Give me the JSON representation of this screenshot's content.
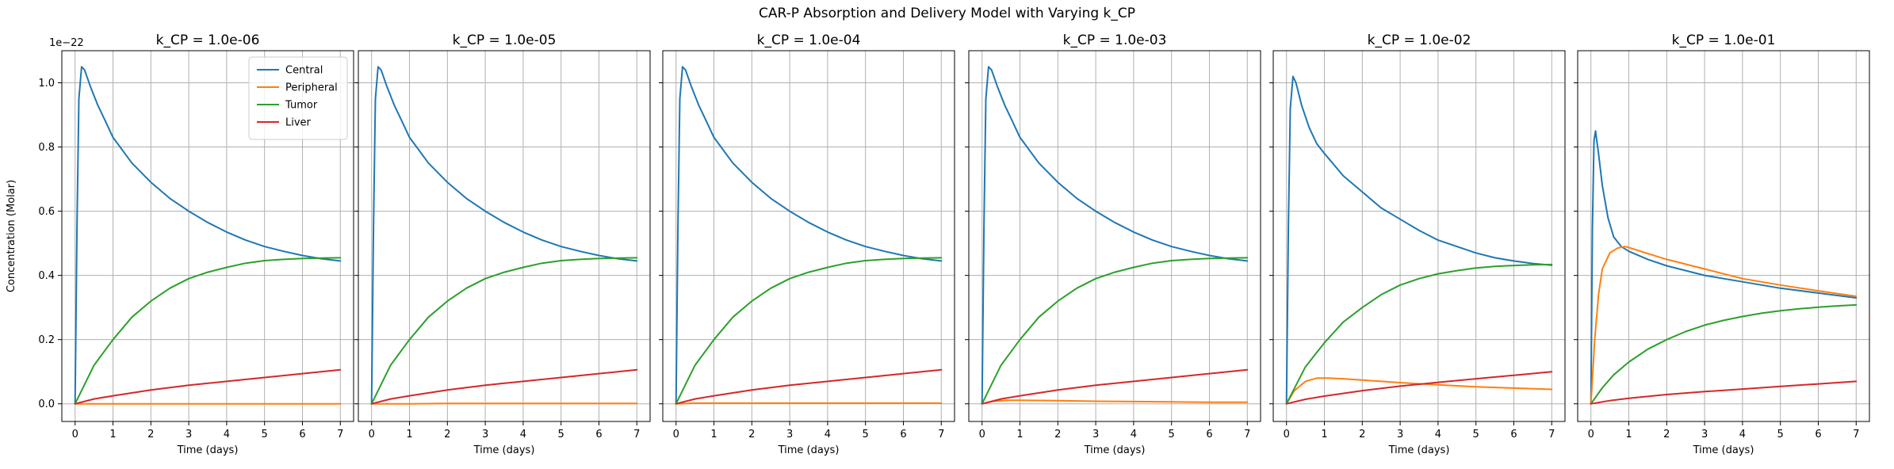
{
  "figure_title": "CAR-P Absorption and Delivery Model with Varying k_CP",
  "colors": {
    "Central": "#1f77b4",
    "Peripheral": "#ff7f0e",
    "Tumor": "#2ca02c",
    "Liver": "#d62728",
    "grid": "#b0b0b0"
  },
  "chart_data": [
    {
      "type": "line",
      "title": "k_CP = 1.0e-06",
      "xlabel": "Time (days)",
      "ylabel": "Concentration (Molar)",
      "xlim": [
        -0.35,
        7.35
      ],
      "ylim": [
        -0.055,
        1.1
      ],
      "y_scale_label": "1e−22",
      "xticks": [
        0,
        1,
        2,
        3,
        4,
        5,
        6,
        7
      ],
      "yticks": [
        0.0,
        0.2,
        0.4,
        0.6,
        0.8,
        1.0
      ],
      "grid": true,
      "legend": "top-right",
      "series": [
        {
          "name": "Central",
          "x": [
            0,
            0.05,
            0.1,
            0.17,
            0.25,
            0.4,
            0.6,
            0.8,
            1,
            1.5,
            2,
            2.5,
            3,
            3.5,
            4,
            4.5,
            5,
            5.5,
            6,
            6.5,
            7
          ],
          "y": [
            0,
            0.55,
            0.95,
            1.05,
            1.04,
            0.99,
            0.93,
            0.88,
            0.83,
            0.75,
            0.69,
            0.64,
            0.6,
            0.565,
            0.535,
            0.51,
            0.49,
            0.475,
            0.462,
            0.452,
            0.445
          ]
        },
        {
          "name": "Peripheral",
          "x": [
            0,
            1,
            2,
            3,
            4,
            5,
            6,
            7
          ],
          "y": [
            0,
            0,
            0,
            0,
            0,
            0,
            0,
            0
          ]
        },
        {
          "name": "Tumor",
          "x": [
            0,
            0.5,
            1,
            1.5,
            2,
            2.5,
            3,
            3.5,
            4,
            4.5,
            5,
            5.5,
            6,
            6.5,
            7
          ],
          "y": [
            0,
            0.12,
            0.2,
            0.27,
            0.32,
            0.36,
            0.39,
            0.41,
            0.425,
            0.438,
            0.446,
            0.45,
            0.453,
            0.454,
            0.455
          ]
        },
        {
          "name": "Liver",
          "x": [
            0,
            0.5,
            1,
            2,
            3,
            4,
            5,
            6,
            7
          ],
          "y": [
            0,
            0.015,
            0.025,
            0.043,
            0.058,
            0.07,
            0.082,
            0.094,
            0.106
          ]
        }
      ]
    },
    {
      "type": "line",
      "title": "k_CP = 1.0e-05",
      "xlabel": "Time (days)",
      "xlim": [
        -0.35,
        7.35
      ],
      "ylim": [
        -0.055,
        1.1
      ],
      "xticks": [
        0,
        1,
        2,
        3,
        4,
        5,
        6,
        7
      ],
      "yticks": [
        0.0,
        0.2,
        0.4,
        0.6,
        0.8,
        1.0
      ],
      "grid": true,
      "series": [
        {
          "name": "Central",
          "x": [
            0,
            0.05,
            0.1,
            0.17,
            0.25,
            0.4,
            0.6,
            0.8,
            1,
            1.5,
            2,
            2.5,
            3,
            3.5,
            4,
            4.5,
            5,
            5.5,
            6,
            6.5,
            7
          ],
          "y": [
            0,
            0.55,
            0.95,
            1.05,
            1.04,
            0.99,
            0.93,
            0.88,
            0.83,
            0.75,
            0.69,
            0.64,
            0.6,
            0.565,
            0.535,
            0.51,
            0.49,
            0.475,
            0.462,
            0.452,
            0.445
          ]
        },
        {
          "name": "Peripheral",
          "x": [
            0,
            1,
            2,
            3,
            4,
            5,
            6,
            7
          ],
          "y": [
            0,
            0,
            0.001,
            0.001,
            0.001,
            0.001,
            0.001,
            0.001
          ]
        },
        {
          "name": "Tumor",
          "x": [
            0,
            0.5,
            1,
            1.5,
            2,
            2.5,
            3,
            3.5,
            4,
            4.5,
            5,
            5.5,
            6,
            6.5,
            7
          ],
          "y": [
            0,
            0.12,
            0.2,
            0.27,
            0.32,
            0.36,
            0.39,
            0.41,
            0.425,
            0.438,
            0.446,
            0.45,
            0.453,
            0.454,
            0.455
          ]
        },
        {
          "name": "Liver",
          "x": [
            0,
            0.5,
            1,
            2,
            3,
            4,
            5,
            6,
            7
          ],
          "y": [
            0,
            0.015,
            0.025,
            0.043,
            0.058,
            0.07,
            0.082,
            0.094,
            0.106
          ]
        }
      ]
    },
    {
      "type": "line",
      "title": "k_CP = 1.0e-04",
      "xlabel": "Time (days)",
      "xlim": [
        -0.35,
        7.35
      ],
      "ylim": [
        -0.055,
        1.1
      ],
      "xticks": [
        0,
        1,
        2,
        3,
        4,
        5,
        6,
        7
      ],
      "yticks": [
        0.0,
        0.2,
        0.4,
        0.6,
        0.8,
        1.0
      ],
      "grid": true,
      "series": [
        {
          "name": "Central",
          "x": [
            0,
            0.05,
            0.1,
            0.17,
            0.25,
            0.4,
            0.6,
            0.8,
            1,
            1.5,
            2,
            2.5,
            3,
            3.5,
            4,
            4.5,
            5,
            5.5,
            6,
            6.5,
            7
          ],
          "y": [
            0,
            0.55,
            0.95,
            1.05,
            1.04,
            0.99,
            0.93,
            0.88,
            0.83,
            0.75,
            0.69,
            0.64,
            0.6,
            0.565,
            0.535,
            0.51,
            0.49,
            0.475,
            0.462,
            0.452,
            0.445
          ]
        },
        {
          "name": "Peripheral",
          "x": [
            0,
            0.5,
            1,
            2,
            3,
            4,
            5,
            6,
            7
          ],
          "y": [
            0,
            0.002,
            0.002,
            0.002,
            0.002,
            0.002,
            0.002,
            0.002,
            0.002
          ]
        },
        {
          "name": "Tumor",
          "x": [
            0,
            0.5,
            1,
            1.5,
            2,
            2.5,
            3,
            3.5,
            4,
            4.5,
            5,
            5.5,
            6,
            6.5,
            7
          ],
          "y": [
            0,
            0.12,
            0.2,
            0.27,
            0.32,
            0.36,
            0.39,
            0.41,
            0.425,
            0.438,
            0.446,
            0.45,
            0.453,
            0.454,
            0.455
          ]
        },
        {
          "name": "Liver",
          "x": [
            0,
            0.5,
            1,
            2,
            3,
            4,
            5,
            6,
            7
          ],
          "y": [
            0,
            0.015,
            0.025,
            0.043,
            0.058,
            0.07,
            0.082,
            0.094,
            0.106
          ]
        }
      ]
    },
    {
      "type": "line",
      "title": "k_CP = 1.0e-03",
      "xlabel": "Time (days)",
      "xlim": [
        -0.35,
        7.35
      ],
      "ylim": [
        -0.055,
        1.1
      ],
      "xticks": [
        0,
        1,
        2,
        3,
        4,
        5,
        6,
        7
      ],
      "yticks": [
        0.0,
        0.2,
        0.4,
        0.6,
        0.8,
        1.0
      ],
      "grid": true,
      "series": [
        {
          "name": "Central",
          "x": [
            0,
            0.05,
            0.1,
            0.17,
            0.25,
            0.4,
            0.6,
            0.8,
            1,
            1.5,
            2,
            2.5,
            3,
            3.5,
            4,
            4.5,
            5,
            5.5,
            6,
            6.5,
            7
          ],
          "y": [
            0,
            0.55,
            0.95,
            1.05,
            1.04,
            0.99,
            0.93,
            0.88,
            0.83,
            0.75,
            0.69,
            0.64,
            0.6,
            0.565,
            0.535,
            0.51,
            0.49,
            0.475,
            0.462,
            0.452,
            0.445
          ]
        },
        {
          "name": "Peripheral",
          "x": [
            0,
            0.3,
            0.7,
            1,
            2,
            3,
            4,
            5,
            6,
            7
          ],
          "y": [
            0,
            0.008,
            0.011,
            0.011,
            0.01,
            0.008,
            0.007,
            0.006,
            0.005,
            0.005
          ]
        },
        {
          "name": "Tumor",
          "x": [
            0,
            0.5,
            1,
            1.5,
            2,
            2.5,
            3,
            3.5,
            4,
            4.5,
            5,
            5.5,
            6,
            6.5,
            7
          ],
          "y": [
            0,
            0.12,
            0.2,
            0.27,
            0.32,
            0.36,
            0.39,
            0.41,
            0.425,
            0.438,
            0.446,
            0.45,
            0.453,
            0.454,
            0.455
          ]
        },
        {
          "name": "Liver",
          "x": [
            0,
            0.5,
            1,
            2,
            3,
            4,
            5,
            6,
            7
          ],
          "y": [
            0,
            0.015,
            0.025,
            0.043,
            0.058,
            0.07,
            0.082,
            0.094,
            0.106
          ]
        }
      ]
    },
    {
      "type": "line",
      "title": "k_CP = 1.0e-02",
      "xlabel": "Time (days)",
      "xlim": [
        -0.35,
        7.35
      ],
      "ylim": [
        -0.055,
        1.1
      ],
      "xticks": [
        0,
        1,
        2,
        3,
        4,
        5,
        6,
        7
      ],
      "yticks": [
        0.0,
        0.2,
        0.4,
        0.6,
        0.8,
        1.0
      ],
      "grid": true,
      "series": [
        {
          "name": "Central",
          "x": [
            0,
            0.05,
            0.1,
            0.17,
            0.25,
            0.4,
            0.6,
            0.8,
            1,
            1.5,
            2,
            2.5,
            3,
            3.5,
            4,
            4.5,
            5,
            5.5,
            6,
            6.5,
            7
          ],
          "y": [
            0,
            0.55,
            0.92,
            1.02,
            1.0,
            0.93,
            0.86,
            0.81,
            0.78,
            0.71,
            0.66,
            0.61,
            0.575,
            0.54,
            0.51,
            0.49,
            0.47,
            0.455,
            0.445,
            0.437,
            0.432
          ]
        },
        {
          "name": "Peripheral",
          "x": [
            0,
            0.2,
            0.5,
            0.8,
            1.1,
            1.5,
            2,
            3,
            4,
            5,
            6,
            7
          ],
          "y": [
            0,
            0.04,
            0.07,
            0.08,
            0.08,
            0.078,
            0.074,
            0.066,
            0.059,
            0.053,
            0.049,
            0.045
          ]
        },
        {
          "name": "Tumor",
          "x": [
            0,
            0.5,
            1,
            1.5,
            2,
            2.5,
            3,
            3.5,
            4,
            4.5,
            5,
            5.5,
            6,
            6.5,
            7
          ],
          "y": [
            0,
            0.115,
            0.19,
            0.255,
            0.3,
            0.34,
            0.37,
            0.39,
            0.405,
            0.415,
            0.423,
            0.428,
            0.431,
            0.433,
            0.434
          ]
        },
        {
          "name": "Liver",
          "x": [
            0,
            0.5,
            1,
            2,
            3,
            4,
            5,
            6,
            7
          ],
          "y": [
            0,
            0.014,
            0.024,
            0.041,
            0.055,
            0.067,
            0.078,
            0.089,
            0.1
          ]
        }
      ]
    },
    {
      "type": "line",
      "title": "k_CP = 1.0e-01",
      "xlabel": "Time (days)",
      "xlim": [
        -0.35,
        7.35
      ],
      "ylim": [
        -0.055,
        1.1
      ],
      "xticks": [
        0,
        1,
        2,
        3,
        4,
        5,
        6,
        7
      ],
      "yticks": [
        0.0,
        0.2,
        0.4,
        0.6,
        0.8,
        1.0
      ],
      "grid": true,
      "series": [
        {
          "name": "Central",
          "x": [
            0,
            0.04,
            0.08,
            0.12,
            0.2,
            0.3,
            0.45,
            0.6,
            0.8,
            1,
            1.5,
            2,
            3,
            4,
            5,
            6,
            7
          ],
          "y": [
            0,
            0.55,
            0.82,
            0.85,
            0.78,
            0.68,
            0.58,
            0.52,
            0.49,
            0.475,
            0.45,
            0.43,
            0.4,
            0.38,
            0.36,
            0.345,
            0.33
          ]
        },
        {
          "name": "Peripheral",
          "x": [
            0,
            0.1,
            0.2,
            0.3,
            0.5,
            0.7,
            0.9,
            1,
            1.5,
            2,
            3,
            4,
            5,
            6,
            7
          ],
          "y": [
            0,
            0.2,
            0.34,
            0.42,
            0.47,
            0.485,
            0.49,
            0.487,
            0.468,
            0.45,
            0.42,
            0.39,
            0.37,
            0.352,
            0.335
          ]
        },
        {
          "name": "Tumor",
          "x": [
            0,
            0.3,
            0.6,
            1,
            1.5,
            2,
            2.5,
            3,
            3.5,
            4,
            4.5,
            5,
            5.5,
            6,
            6.5,
            7
          ],
          "y": [
            0,
            0.05,
            0.09,
            0.13,
            0.17,
            0.2,
            0.225,
            0.245,
            0.26,
            0.272,
            0.282,
            0.29,
            0.296,
            0.301,
            0.305,
            0.308
          ]
        },
        {
          "name": "Liver",
          "x": [
            0,
            0.5,
            1,
            2,
            3,
            4,
            5,
            6,
            7
          ],
          "y": [
            0,
            0.01,
            0.017,
            0.029,
            0.038,
            0.046,
            0.054,
            0.062,
            0.07
          ]
        }
      ]
    }
  ]
}
